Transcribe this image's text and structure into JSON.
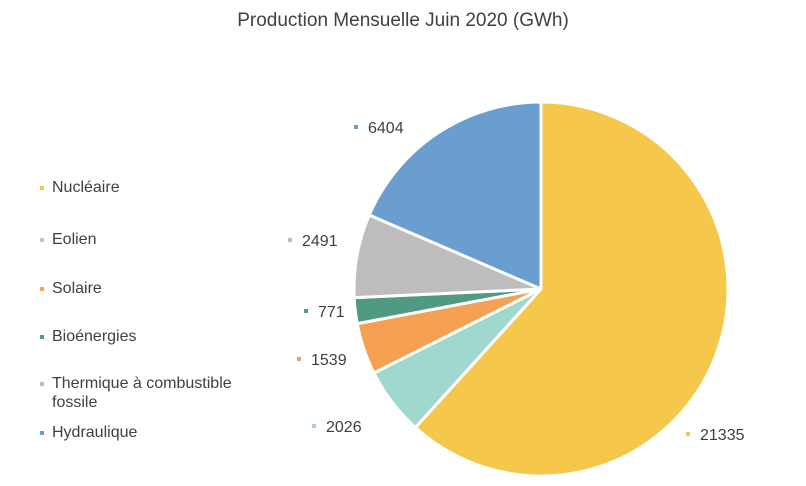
{
  "title": "Production Mensuelle Juin 2020 (GWh)",
  "chart_data": {
    "type": "pie",
    "title": "Production Mensuelle Juin 2020 (GWh)",
    "categories": [
      "Nucléaire",
      "Eolien",
      "Solaire",
      "Bioénergies",
      "Thermique à combustible fossile",
      "Hydraulique"
    ],
    "values": [
      21335,
      2026,
      1539,
      771,
      2491,
      6404
    ],
    "colors": [
      "#F5C84B",
      "#A0D8CF",
      "#F5A052",
      "#4F9A80",
      "#BDBDBD",
      "#6A9ECF"
    ],
    "legend_position": "left",
    "data_labels": [
      "21335",
      "2026",
      "1539",
      "771",
      "2491",
      "6404"
    ]
  },
  "legend": [
    {
      "label": "Nucléaire",
      "color": "#F5C84B"
    },
    {
      "label": "Eolien",
      "color": "#A0D8CF"
    },
    {
      "label": "Solaire",
      "color": "#F5A052"
    },
    {
      "label": "Bioénergies",
      "color": "#4F9A80"
    },
    {
      "label": "Thermique à combustible fossile",
      "color": "#BDBDBD"
    },
    {
      "label": "Hydraulique",
      "color": "#6A9ECF"
    }
  ]
}
